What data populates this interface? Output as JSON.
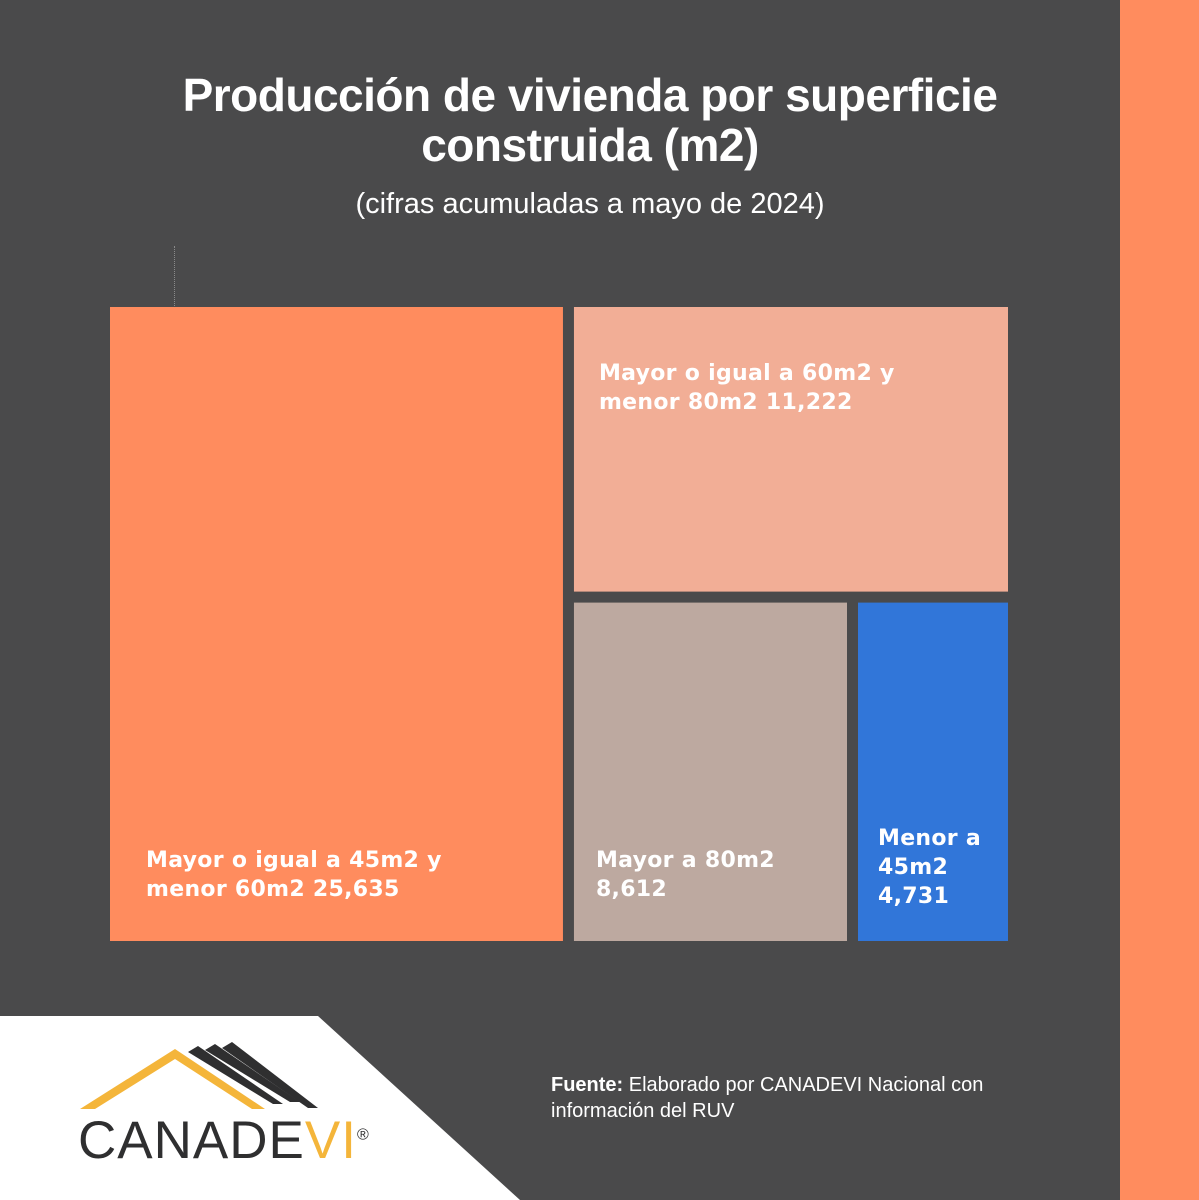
{
  "chart_data": {
    "type": "treemap",
    "title_line1": "Producción de vivienda por superficie",
    "title_line2": "construida (m2)",
    "subtitle": "(cifras acumuladas a mayo de 2024)",
    "tiles": [
      {
        "label_line1": "Mayor o igual a 45m2 y",
        "label_line2": "menor 60m2 25,635",
        "label_line3": "",
        "value": 25635,
        "color": "#ff8c5e"
      },
      {
        "label_line1": "Mayor o igual a 60m2 y",
        "label_line2": "menor 80m2 11,222",
        "label_line3": "",
        "value": 11222,
        "color": "#f2ae96"
      },
      {
        "label_line1": "Mayor a 80m2",
        "label_line2": "8,612",
        "label_line3": "",
        "value": 8612,
        "color": "#bda9a0"
      },
      {
        "label_line1": "Menor a",
        "label_line2": "45m2",
        "label_line3": "4,731",
        "value": 4731,
        "color": "#3176d9"
      }
    ]
  },
  "source": {
    "lead": "Fuente:",
    "text": " Elaborado por CANADEVI Nacional con",
    "text_line2": "información del RUV"
  },
  "logo": {
    "brand_main": "CANADE",
    "brand_accent": "VI",
    "registered": "®",
    "roof_color": "#f4b53a",
    "roof_dark_color": "#2f2f30"
  }
}
